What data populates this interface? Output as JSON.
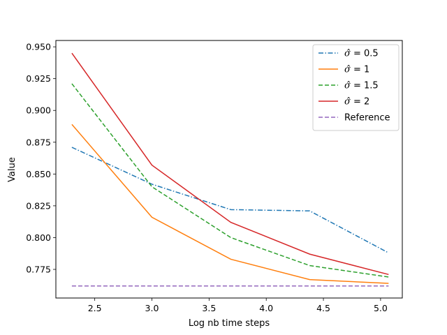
{
  "chart_data": {
    "type": "line",
    "title": "",
    "xlabel": "Log nb time  steps",
    "ylabel": "Value",
    "xlim": [
      2.16,
      5.19
    ],
    "ylim": [
      0.7525,
      0.955
    ],
    "xticks": [
      2.5,
      3.0,
      3.5,
      4.0,
      4.5,
      5.0
    ],
    "xtick_labels": [
      "2.5",
      "3.0",
      "3.5",
      "4.0",
      "4.5",
      "5.0"
    ],
    "yticks": [
      0.775,
      0.8,
      0.825,
      0.85,
      0.875,
      0.9,
      0.925,
      0.95
    ],
    "ytick_labels": [
      "0.775",
      "0.800",
      "0.825",
      "0.850",
      "0.875",
      "0.900",
      "0.925",
      "0.950"
    ],
    "grid": false,
    "legend_position": "top-right",
    "x": [
      2.3,
      3.0,
      3.69,
      4.38,
      5.07
    ],
    "series": [
      {
        "name": "σ̂ =  0.5",
        "sigma_value": "0.5",
        "color": "#1f77b4",
        "style": "dashdot",
        "values": [
          0.871,
          0.842,
          0.822,
          0.821,
          0.788
        ]
      },
      {
        "name": "σ̂ =  1",
        "sigma_value": "1",
        "color": "#ff7f0e",
        "style": "solid",
        "values": [
          0.889,
          0.816,
          0.783,
          0.767,
          0.764
        ]
      },
      {
        "name": "σ̂ =  1.5",
        "sigma_value": "1.5",
        "color": "#2ca02c",
        "style": "dashed",
        "values": [
          0.921,
          0.84,
          0.8,
          0.778,
          0.769
        ]
      },
      {
        "name": "σ̂ =  2",
        "sigma_value": "2",
        "color": "#d62728",
        "style": "solid",
        "values": [
          0.945,
          0.857,
          0.812,
          0.787,
          0.771
        ]
      },
      {
        "name": "Reference",
        "sigma_value": "",
        "color": "#9467bd",
        "style": "dashed",
        "values": [
          0.762,
          0.762,
          0.762,
          0.762,
          0.762
        ]
      }
    ]
  }
}
